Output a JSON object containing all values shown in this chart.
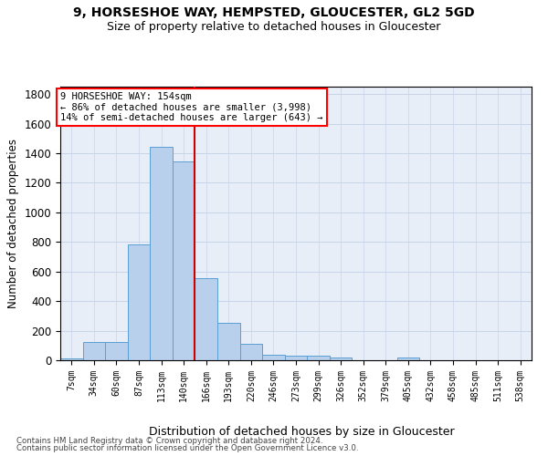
{
  "title1": "9, HORSESHOE WAY, HEMPSTED, GLOUCESTER, GL2 5GD",
  "title2": "Size of property relative to detached houses in Gloucester",
  "xlabel": "Distribution of detached houses by size in Gloucester",
  "ylabel": "Number of detached properties",
  "categories": [
    "7sqm",
    "34sqm",
    "60sqm",
    "87sqm",
    "113sqm",
    "140sqm",
    "166sqm",
    "193sqm",
    "220sqm",
    "246sqm",
    "273sqm",
    "299sqm",
    "326sqm",
    "352sqm",
    "379sqm",
    "405sqm",
    "432sqm",
    "458sqm",
    "485sqm",
    "511sqm",
    "538sqm"
  ],
  "bar_heights": [
    15,
    125,
    125,
    785,
    1440,
    1345,
    555,
    250,
    110,
    35,
    28,
    28,
    18,
    0,
    0,
    20,
    0,
    0,
    0,
    0,
    0
  ],
  "bar_color": "#b8d0eb",
  "bar_edge_color": "#5a9fd4",
  "vline_x": 5.5,
  "vline_color": "#cc0000",
  "annotation_line1": "9 HORSESHOE WAY: 154sqm",
  "annotation_line2": "← 86% of detached houses are smaller (3,998)",
  "annotation_line3": "14% of semi-detached houses are larger (643) →",
  "annotation_box_facecolor": "white",
  "annotation_box_edgecolor": "red",
  "ylim": [
    0,
    1850
  ],
  "yticks": [
    0,
    200,
    400,
    600,
    800,
    1000,
    1200,
    1400,
    1600,
    1800
  ],
  "bg_color": "#e8eef8",
  "grid_color": "#c8d4e8",
  "footer1": "Contains HM Land Registry data © Crown copyright and database right 2024.",
  "footer2": "Contains public sector information licensed under the Open Government Licence v3.0."
}
